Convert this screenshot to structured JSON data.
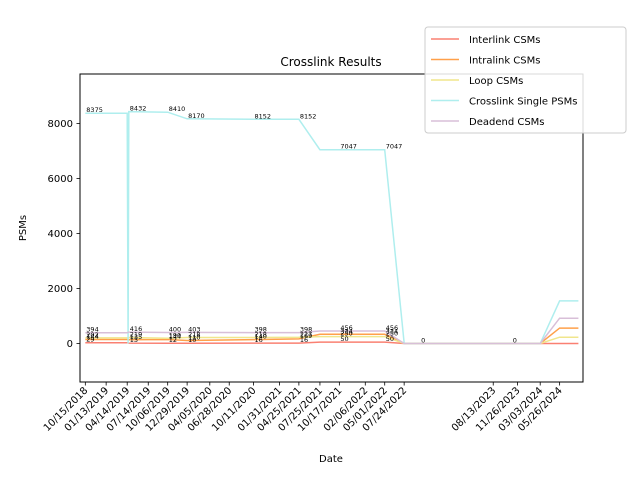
{
  "chart_data": {
    "type": "line",
    "title": "Crosslink Results",
    "xlabel": "Date",
    "ylabel": "PSMs",
    "ylim": [
      -1400,
      9800
    ],
    "yticks": [
      0,
      2000,
      4000,
      6000,
      8000
    ],
    "ytick_labels": [
      "0",
      "2000",
      "4000",
      "6000",
      "8000"
    ],
    "xlim": [
      "2018-09-22",
      "2024-09-04"
    ],
    "xticks": [
      "2018-10-15",
      "2019-01-13",
      "2019-04-14",
      "2019-07-14",
      "2019-10-06",
      "2019-12-29",
      "2020-04-05",
      "2020-06-28",
      "2020-10-11",
      "2021-01-31",
      "2021-04-25",
      "2021-07-25",
      "2021-10-17",
      "2022-02-06",
      "2022-05-01",
      "2022-07-24",
      "2023-08-13",
      "2023-11-26",
      "2024-03-03",
      "2024-05-26"
    ],
    "xtick_labels": [
      "10/15/2018",
      "01/13/2019",
      "04/14/2019",
      "07/14/2019",
      "10/06/2019",
      "12/29/2019",
      "04/05/2020",
      "06/28/2020",
      "10/11/2020",
      "01/31/2021",
      "04/25/2021",
      "07/25/2021",
      "10/17/2021",
      "02/06/2022",
      "05/01/2022",
      "07/24/2022",
      "08/13/2023",
      "11/26/2023",
      "03/03/2024",
      "05/26/2024"
    ],
    "grid": false,
    "legend_position": "top-right",
    "series": [
      {
        "name": "Interlink CSMs",
        "color": "#fa8072",
        "x": [
          "2018-10-15",
          "2019-04-14",
          "2019-04-21",
          "2019-10-06",
          "2019-12-29",
          "2020-10-11",
          "2021-04-25",
          "2021-07-25",
          "2022-05-01",
          "2022-07-24",
          "2023-08-13",
          "2024-03-03",
          "2024-05-26",
          "2024-08-15"
        ],
        "y": [
          29,
          29,
          13,
          12,
          10,
          16,
          16,
          50,
          50,
          0,
          0,
          0,
          0,
          0
        ]
      },
      {
        "name": "Intralink CSMs",
        "color": "#ffa04a",
        "x": [
          "2018-10-15",
          "2019-04-14",
          "2019-04-21",
          "2019-10-06",
          "2019-12-29",
          "2020-10-11",
          "2021-04-25",
          "2021-07-25",
          "2022-05-01",
          "2022-07-24",
          "2023-08-13",
          "2024-03-03",
          "2024-05-26",
          "2024-08-15"
        ],
        "y": [
          144,
          144,
          135,
          144,
          110,
          140,
          169,
          334,
          334,
          0,
          0,
          0,
          560,
          560
        ]
      },
      {
        "name": "Loop CSMs",
        "color": "#f0e68c",
        "x": [
          "2018-10-15",
          "2019-04-14",
          "2019-04-21",
          "2019-10-06",
          "2019-12-29",
          "2020-10-11",
          "2021-04-25",
          "2021-07-25",
          "2022-05-01",
          "2022-07-24",
          "2023-08-13",
          "2024-03-03",
          "2024-05-26",
          "2024-08-15"
        ],
        "y": [
          202,
          202,
          219,
          190,
          218,
          218,
          227,
          250,
          250,
          0,
          0,
          0,
          230,
          230
        ]
      },
      {
        "name": "Crosslink Single PSMs",
        "color": "#afeeee",
        "x": [
          "2018-10-15",
          "2019-04-14",
          "2019-04-18",
          "2019-04-21",
          "2019-10-06",
          "2019-12-29",
          "2020-10-11",
          "2021-04-25",
          "2021-07-25",
          "2022-05-01",
          "2022-07-24",
          "2023-08-13",
          "2024-03-03",
          "2024-05-26",
          "2024-08-15"
        ],
        "y": [
          8375,
          8375,
          0,
          8432,
          8410,
          8170,
          8152,
          8152,
          7047,
          7047,
          0,
          0,
          0,
          1550,
          1550
        ]
      },
      {
        "name": "Deadend CSMs",
        "color": "#d8bfd8",
        "x": [
          "2018-10-15",
          "2019-04-14",
          "2019-04-21",
          "2019-10-06",
          "2019-12-29",
          "2020-10-11",
          "2021-04-25",
          "2021-07-25",
          "2022-05-01",
          "2022-07-24",
          "2023-08-13",
          "2024-03-03",
          "2024-05-26",
          "2024-08-15"
        ],
        "y": [
          394,
          394,
          416,
          400,
          403,
          398,
          398,
          456,
          456,
          0,
          0,
          0,
          920,
          920
        ]
      }
    ],
    "annotations": [
      {
        "x": "2018-10-15",
        "y": 8375,
        "text": "8375"
      },
      {
        "x": "2019-04-21",
        "y": 8432,
        "text": "8432"
      },
      {
        "x": "2019-10-06",
        "y": 8410,
        "text": "8410"
      },
      {
        "x": "2019-12-29",
        "y": 8170,
        "text": "8170"
      },
      {
        "x": "2020-10-11",
        "y": 8152,
        "text": "8152"
      },
      {
        "x": "2021-04-25",
        "y": 8152,
        "text": "8152"
      },
      {
        "x": "2021-10-17",
        "y": 7047,
        "text": "7047"
      },
      {
        "x": "2022-05-01",
        "y": 7047,
        "text": "7047"
      },
      {
        "x": "2018-10-15",
        "y": 394,
        "text": "394"
      },
      {
        "x": "2018-10-15",
        "y": 202,
        "text": "202"
      },
      {
        "x": "2018-10-15",
        "y": 144,
        "text": "144"
      },
      {
        "x": "2018-10-15",
        "y": 29,
        "text": "29"
      },
      {
        "x": "2019-04-21",
        "y": 416,
        "text": "416"
      },
      {
        "x": "2019-04-21",
        "y": 219,
        "text": "219"
      },
      {
        "x": "2019-04-21",
        "y": 135,
        "text": "135"
      },
      {
        "x": "2019-04-21",
        "y": 13,
        "text": "13"
      },
      {
        "x": "2019-10-06",
        "y": 400,
        "text": "400"
      },
      {
        "x": "2019-10-06",
        "y": 190,
        "text": "190"
      },
      {
        "x": "2019-10-06",
        "y": 144,
        "text": "144"
      },
      {
        "x": "2019-10-06",
        "y": 12,
        "text": "12"
      },
      {
        "x": "2019-12-29",
        "y": 403,
        "text": "403"
      },
      {
        "x": "2019-12-29",
        "y": 218,
        "text": "218"
      },
      {
        "x": "2019-12-29",
        "y": 110,
        "text": "110"
      },
      {
        "x": "2019-12-29",
        "y": 10,
        "text": "10"
      },
      {
        "x": "2020-10-11",
        "y": 398,
        "text": "398"
      },
      {
        "x": "2020-10-11",
        "y": 218,
        "text": "218"
      },
      {
        "x": "2020-10-11",
        "y": 140,
        "text": "140"
      },
      {
        "x": "2020-10-11",
        "y": 16,
        "text": "16"
      },
      {
        "x": "2021-04-25",
        "y": 398,
        "text": "398"
      },
      {
        "x": "2021-04-25",
        "y": 227,
        "text": "227"
      },
      {
        "x": "2021-04-25",
        "y": 169,
        "text": "169"
      },
      {
        "x": "2021-04-25",
        "y": 16,
        "text": "16"
      },
      {
        "x": "2021-10-17",
        "y": 456,
        "text": "456"
      },
      {
        "x": "2021-10-17",
        "y": 334,
        "text": "334"
      },
      {
        "x": "2021-10-17",
        "y": 250,
        "text": "250"
      },
      {
        "x": "2021-10-17",
        "y": 50,
        "text": "50"
      },
      {
        "x": "2022-05-01",
        "y": 456,
        "text": "456"
      },
      {
        "x": "2022-05-01",
        "y": 334,
        "text": "334"
      },
      {
        "x": "2022-05-01",
        "y": 250,
        "text": "250"
      },
      {
        "x": "2022-05-01",
        "y": 50,
        "text": "50"
      },
      {
        "x": "2022-10-01",
        "y": 0,
        "text": "0"
      },
      {
        "x": "2023-11-01",
        "y": 0,
        "text": "0"
      }
    ]
  }
}
